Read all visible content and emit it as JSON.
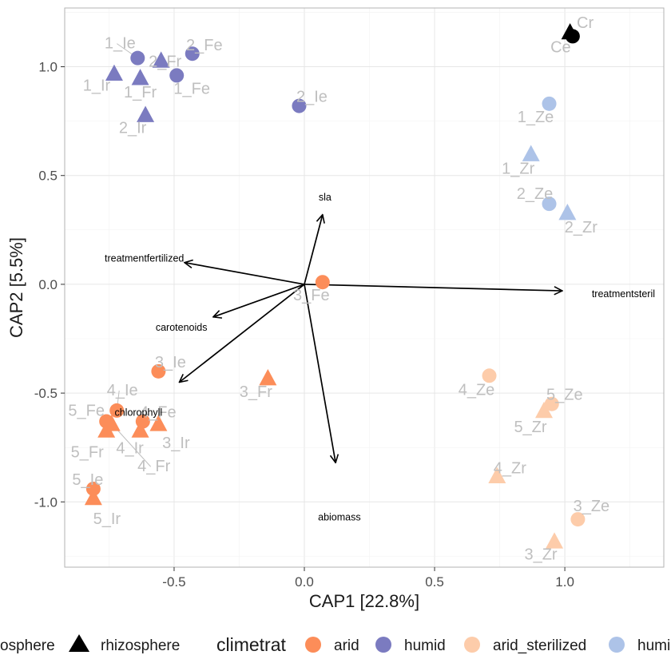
{
  "chart_data": {
    "type": "scatter",
    "title": "",
    "xlabel": "CAP1   [22.8%]",
    "ylabel": "CAP2   [5.5%]",
    "xlim": [
      -0.92,
      1.38
    ],
    "ylim": [
      -1.3,
      1.27
    ],
    "x_ticks": [
      -0.5,
      0.0,
      0.5,
      1.0
    ],
    "x_tick_labels": [
      "-0.5",
      "0.0",
      "0.5",
      "1.0"
    ],
    "y_ticks": [
      -1.0,
      -0.5,
      0.0,
      0.5,
      1.0
    ],
    "y_tick_labels": [
      "-1.0",
      "-0.5",
      "0.0",
      "0.5",
      "1.0"
    ],
    "grid": true,
    "legend_position": "bottom",
    "colors": {
      "arid": "#FC8D59",
      "humid": "#7B7BC0",
      "arid_sterilized": "#FDCCAA",
      "humid_sterilized": "#ADC3E8",
      "control": "#000000"
    },
    "points": [
      {
        "label": "1_Ie",
        "x": -0.64,
        "y": 1.04,
        "shape": "circle",
        "group": "humid"
      },
      {
        "label": "2_Fe",
        "x": -0.43,
        "y": 1.06,
        "shape": "circle",
        "group": "humid"
      },
      {
        "label": "1_Fe",
        "x": -0.49,
        "y": 0.96,
        "shape": "circle",
        "group": "humid"
      },
      {
        "label": "2_Ie",
        "x": -0.02,
        "y": 0.82,
        "shape": "circle",
        "group": "humid"
      },
      {
        "label": "1_Ir",
        "x": -0.73,
        "y": 0.97,
        "shape": "triangle",
        "group": "humid"
      },
      {
        "label": "1_Fr",
        "x": -0.63,
        "y": 0.95,
        "shape": "triangle",
        "group": "humid"
      },
      {
        "label": "2_Fr",
        "x": -0.55,
        "y": 1.03,
        "shape": "triangle",
        "group": "humid"
      },
      {
        "label": "2_Ir",
        "x": -0.61,
        "y": 0.78,
        "shape": "triangle",
        "group": "humid"
      },
      {
        "label": "Cr",
        "x": 1.02,
        "y": 1.16,
        "shape": "triangle",
        "group": "control"
      },
      {
        "label": "Ce",
        "x": 1.03,
        "y": 1.14,
        "shape": "circle",
        "group": "control"
      },
      {
        "label": "1_Ze",
        "x": 0.94,
        "y": 0.83,
        "shape": "circle",
        "group": "humid_sterilized"
      },
      {
        "label": "1_Zr",
        "x": 0.87,
        "y": 0.6,
        "shape": "triangle",
        "group": "humid_sterilized"
      },
      {
        "label": "2_Ze",
        "x": 0.94,
        "y": 0.37,
        "shape": "circle",
        "group": "humid_sterilized"
      },
      {
        "label": "2_Zr",
        "x": 1.01,
        "y": 0.33,
        "shape": "triangle",
        "group": "humid_sterilized"
      },
      {
        "label": "3_Fe",
        "x": 0.07,
        "y": 0.01,
        "shape": "circle",
        "group": "arid"
      },
      {
        "label": "3_Ie",
        "x": -0.56,
        "y": -0.4,
        "shape": "circle",
        "group": "arid"
      },
      {
        "label": "3_Fr",
        "x": -0.14,
        "y": -0.43,
        "shape": "triangle",
        "group": "arid"
      },
      {
        "label": "4_Ie",
        "x": -0.72,
        "y": -0.58,
        "shape": "circle",
        "group": "arid"
      },
      {
        "label": "5_Fe",
        "x": -0.76,
        "y": -0.63,
        "shape": "circle",
        "group": "arid"
      },
      {
        "label": "4_Fe",
        "x": -0.62,
        "y": -0.63,
        "shape": "circle",
        "group": "arid"
      },
      {
        "label": "5_Fr",
        "x": -0.76,
        "y": -0.67,
        "shape": "triangle",
        "group": "arid"
      },
      {
        "label": "4_Ir",
        "x": -0.63,
        "y": -0.67,
        "shape": "triangle",
        "group": "arid"
      },
      {
        "label": "3_Ir",
        "x": -0.56,
        "y": -0.64,
        "shape": "triangle",
        "group": "arid"
      },
      {
        "label": "4_Fr",
        "x": -0.74,
        "y": -0.64,
        "shape": "triangle",
        "group": "arid"
      },
      {
        "label": "5_Ie",
        "x": -0.81,
        "y": -0.94,
        "shape": "circle",
        "group": "arid"
      },
      {
        "label": "5_Ir",
        "x": -0.81,
        "y": -0.98,
        "shape": "triangle",
        "group": "arid"
      },
      {
        "label": "4_Ze",
        "x": 0.71,
        "y": -0.42,
        "shape": "circle",
        "group": "arid_sterilized"
      },
      {
        "label": "5_Ze",
        "x": 0.95,
        "y": -0.55,
        "shape": "circle",
        "group": "arid_sterilized"
      },
      {
        "label": "5_Zr",
        "x": 0.92,
        "y": -0.58,
        "shape": "triangle",
        "group": "arid_sterilized"
      },
      {
        "label": "4_Zr",
        "x": 0.74,
        "y": -0.88,
        "shape": "triangle",
        "group": "arid_sterilized"
      },
      {
        "label": "3_Ze",
        "x": 1.05,
        "y": -1.08,
        "shape": "circle",
        "group": "arid_sterilized"
      },
      {
        "label": "3_Zr",
        "x": 0.96,
        "y": -1.18,
        "shape": "triangle",
        "group": "arid_sterilized"
      }
    ],
    "arrows": [
      {
        "label": "sla",
        "x": 0.07,
        "y": 0.32
      },
      {
        "label": "treatmentfertilized",
        "x": -0.46,
        "y": 0.1
      },
      {
        "label": "treatmentsteril",
        "x": 0.99,
        "y": -0.03
      },
      {
        "label": "carotenoids",
        "x": -0.35,
        "y": -0.15
      },
      {
        "label": "chlorophyll",
        "x": -0.48,
        "y": -0.45
      },
      {
        "label": "abiomass",
        "x": 0.12,
        "y": -0.82
      }
    ],
    "legend": {
      "shape_items": [
        "rhizosphere"
      ],
      "shape_item_partial": "osphere",
      "color_title": "climetrat",
      "color_items": [
        "arid",
        "humid",
        "arid_sterilized"
      ],
      "color_item_partial": "humi"
    }
  }
}
